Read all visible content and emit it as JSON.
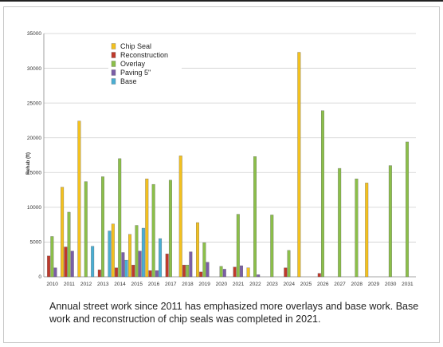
{
  "chart_data": {
    "type": "bar",
    "title": "",
    "xlabel": "",
    "ylabel": "Rehab (ft)",
    "ylim": [
      0,
      35000
    ],
    "yticks": [
      0,
      5000,
      10000,
      15000,
      20000,
      25000,
      30000,
      35000
    ],
    "grid": true,
    "legend_position": "top-left",
    "categories": [
      "2010",
      "2011",
      "2012",
      "2013",
      "2014",
      "2015",
      "2016",
      "2017",
      "2018",
      "2019",
      "2020",
      "2021",
      "2022",
      "2023",
      "2024",
      "2025",
      "2026",
      "2027",
      "2028",
      "2029",
      "2030",
      "2031"
    ],
    "series": [
      {
        "name": "Chip Seal",
        "color": "#f3c11f",
        "values": [
          0,
          12900,
          22400,
          0,
          7600,
          6100,
          14100,
          0,
          17400,
          7800,
          0,
          0,
          1300,
          0,
          0,
          32300,
          0,
          0,
          0,
          13500,
          0,
          0
        ]
      },
      {
        "name": "Reconstruction",
        "color": "#c0392b",
        "values": [
          3000,
          4300,
          0,
          1000,
          1300,
          1700,
          900,
          3300,
          1700,
          700,
          0,
          1400,
          0,
          0,
          1300,
          0,
          500,
          0,
          0,
          0,
          0,
          0
        ]
      },
      {
        "name": "Overlay",
        "color": "#8cbf4a",
        "values": [
          5800,
          9300,
          13700,
          14400,
          17000,
          7400,
          13300,
          13900,
          1700,
          4900,
          1500,
          9000,
          17300,
          8900,
          3800,
          0,
          23900,
          15600,
          14100,
          0,
          16000,
          19400
        ]
      },
      {
        "name": "Paving 5\"",
        "color": "#7b5ea7",
        "values": [
          1300,
          3700,
          0,
          0,
          3500,
          3700,
          900,
          0,
          3600,
          2100,
          1100,
          1600,
          300,
          0,
          0,
          0,
          0,
          0,
          0,
          0,
          0,
          0
        ]
      },
      {
        "name": "Base",
        "color": "#4aaed3",
        "values": [
          0,
          0,
          4400,
          6600,
          2400,
          7000,
          5500,
          0,
          0,
          0,
          0,
          0,
          0,
          0,
          0,
          0,
          0,
          0,
          0,
          0,
          0,
          0
        ]
      }
    ]
  },
  "caption": "Annual street work since 2011 has emphasized more overlays and base work. Base work and reconstruction of chip seals was completed in 2021."
}
